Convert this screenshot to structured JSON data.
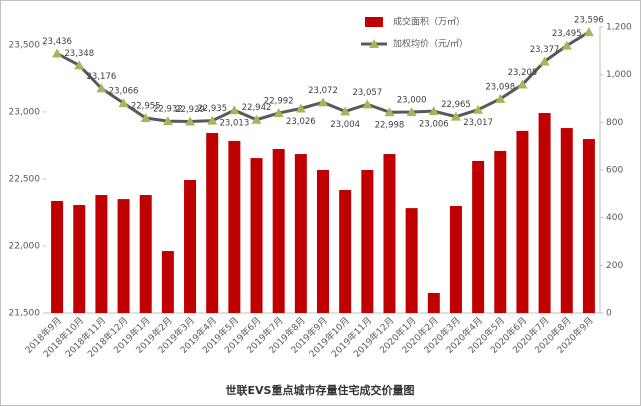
{
  "chart_data": {
    "type": "bar-line",
    "title": "世联EVS重点城市存量住宅成交价量图",
    "categories": [
      "2018年9月",
      "2018年10月",
      "2018年11月",
      "2018年12月",
      "2019年1月",
      "2019年2月",
      "2019年3月",
      "2019年4月",
      "2019年5月",
      "2019年6月",
      "2019年7月",
      "2019年8月",
      "2019年9月",
      "2019年10月",
      "2019年11月",
      "2019年12月",
      "2020年1月",
      "2020年2月",
      "2020年3月",
      "2020年4月",
      "2020年5月",
      "2020年6月",
      "2020年7月",
      "2020年8月",
      "2020年9月"
    ],
    "series": [
      {
        "name": "成交面积（万㎡）",
        "type": "bar",
        "color": "#c00000",
        "axis": "y2",
        "values": [
          470,
          453,
          495,
          478,
          495,
          260,
          558,
          755,
          722,
          650,
          688,
          667,
          600,
          516,
          600,
          667,
          440,
          84,
          449,
          638,
          680,
          764,
          839,
          776,
          730
        ]
      },
      {
        "name": "加权均价（元/㎡）",
        "type": "line",
        "color": "#595959",
        "marker_color": "#9bbb59",
        "axis": "y",
        "values": [
          23436,
          23348,
          23176,
          23066,
          22955,
          22932,
          22929,
          22935,
          23013,
          22942,
          22992,
          23026,
          23072,
          23004,
          23057,
          22998,
          23000,
          23006,
          22965,
          23017,
          23098,
          23205,
          23377,
          23495,
          23596
        ],
        "value_labels": [
          "23,436",
          "23,348",
          "23,176",
          "23,066",
          "22,955",
          "22,932",
          "22,929",
          "22,935",
          "23,013",
          "22,942",
          "22,992",
          "23,026",
          "23,072",
          "23,004",
          "23,057",
          "22,998",
          "23,000",
          "23,006",
          "22,965",
          "23,017",
          "23,098",
          "23,205",
          "23,377",
          "23,495",
          "23,596"
        ]
      }
    ],
    "ylim": [
      21500,
      23634
    ],
    "yticks": [
      {
        "value": 21500,
        "label": "21,500"
      },
      {
        "value": 22000,
        "label": "22,000"
      },
      {
        "value": 22500,
        "label": "22,500"
      },
      {
        "value": 23000,
        "label": "23,000"
      },
      {
        "value": 23500,
        "label": "23,500"
      }
    ],
    "y2lim": [
      0,
      1200
    ],
    "y2ticks": [
      0,
      200,
      400,
      600,
      800,
      {
        "value": 1000,
        "label": "1,000"
      },
      {
        "value": 1200,
        "label": "1,200"
      }
    ],
    "legend": "top-right"
  }
}
